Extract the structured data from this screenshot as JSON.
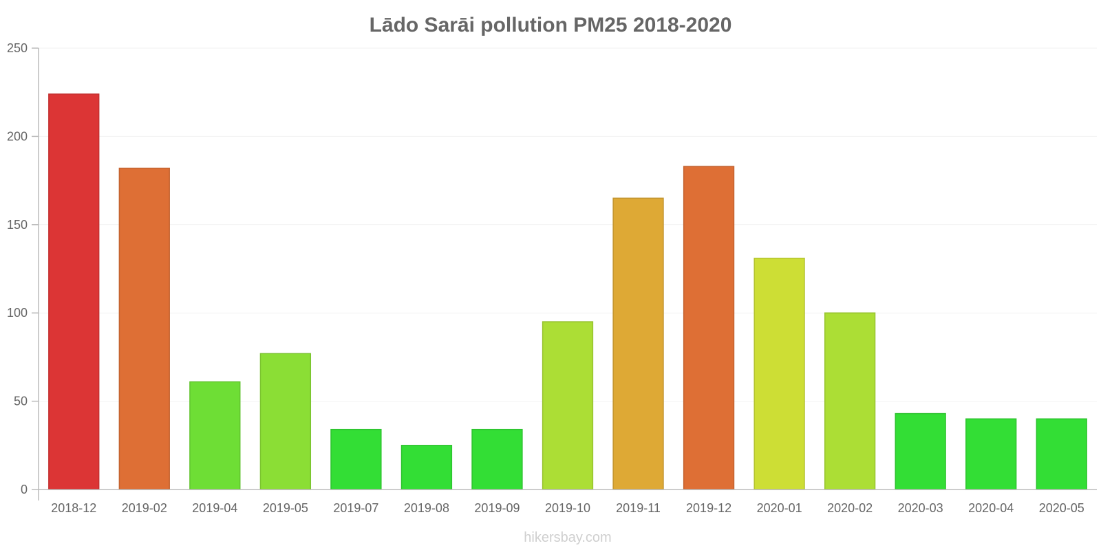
{
  "chart_data": {
    "type": "bar",
    "title": "Lādo Sarāi pollution PM25 2018-2020",
    "xlabel": "",
    "ylabel": "",
    "ylim": [
      0,
      250
    ],
    "yticks": [
      0,
      50,
      100,
      150,
      200,
      250
    ],
    "grid": true,
    "categories": [
      "2018-12",
      "2019-02",
      "2019-04",
      "2019-05",
      "2019-07",
      "2019-08",
      "2019-09",
      "2019-10",
      "2019-11",
      "2019-12",
      "2020-01",
      "2020-02",
      "2020-03",
      "2020-04",
      "2020-05"
    ],
    "values": [
      224,
      182,
      61,
      77,
      34,
      25,
      34,
      95,
      165,
      183,
      131,
      100,
      43,
      40,
      40
    ],
    "colors": [
      "#dc3535",
      "#de6f35",
      "#6ede35",
      "#8bde35",
      "#33de35",
      "#33de35",
      "#33de35",
      "#acde35",
      "#dea935",
      "#de6f35",
      "#cdde35",
      "#acde35",
      "#33de35",
      "#33de35",
      "#33de35"
    ]
  },
  "watermark": "hikersbay.com"
}
